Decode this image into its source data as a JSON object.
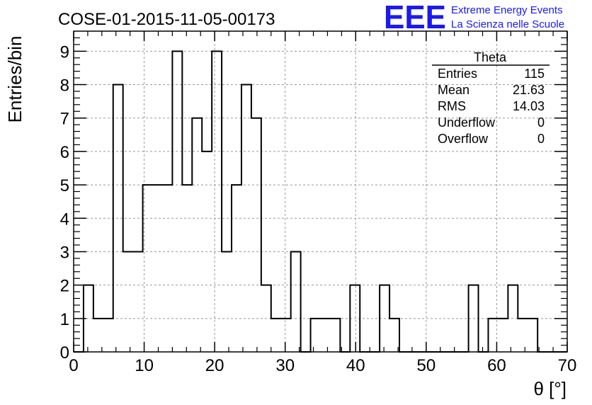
{
  "chart_data": {
    "type": "histogram",
    "title": "COSE-01-2015-11-05-00173",
    "xlabel": "θ [°]",
    "ylabel": "Entries/bin",
    "xlim": [
      0,
      70
    ],
    "ylim": [
      0,
      9.6
    ],
    "x_ticks": [
      "0",
      "10",
      "20",
      "30",
      "40",
      "50",
      "60",
      "70"
    ],
    "y_ticks": [
      "0",
      "1",
      "2",
      "3",
      "4",
      "5",
      "6",
      "7",
      "8",
      "9"
    ],
    "grid": true,
    "bin_width": 1.4,
    "bin_start": 0,
    "values": [
      0,
      2,
      1,
      1,
      8,
      3,
      3,
      5,
      5,
      5,
      9,
      5,
      7,
      6,
      9,
      3,
      5,
      8,
      7,
      2,
      1,
      1,
      3,
      0,
      1,
      1,
      1,
      0,
      2,
      0,
      0,
      2,
      1,
      0,
      0,
      0,
      0,
      0,
      0,
      0,
      2,
      0,
      1,
      1,
      2,
      1,
      1,
      0,
      0,
      0
    ],
    "line_color": "#000000",
    "grid_color": "#999999"
  },
  "stats_box": {
    "title": "Theta",
    "rows": [
      {
        "label": "Entries",
        "value": "115"
      },
      {
        "label": "Mean",
        "value": "21.63"
      },
      {
        "label": "RMS",
        "value": "14.03"
      },
      {
        "label": "Underflow",
        "value": "0"
      },
      {
        "label": "Overflow",
        "value": "0"
      }
    ]
  },
  "logo": {
    "text": "EEE",
    "line1": "Extreme Energy Events",
    "line2": "La Scienza nelle Scuole",
    "color": "#1a1aee"
  }
}
